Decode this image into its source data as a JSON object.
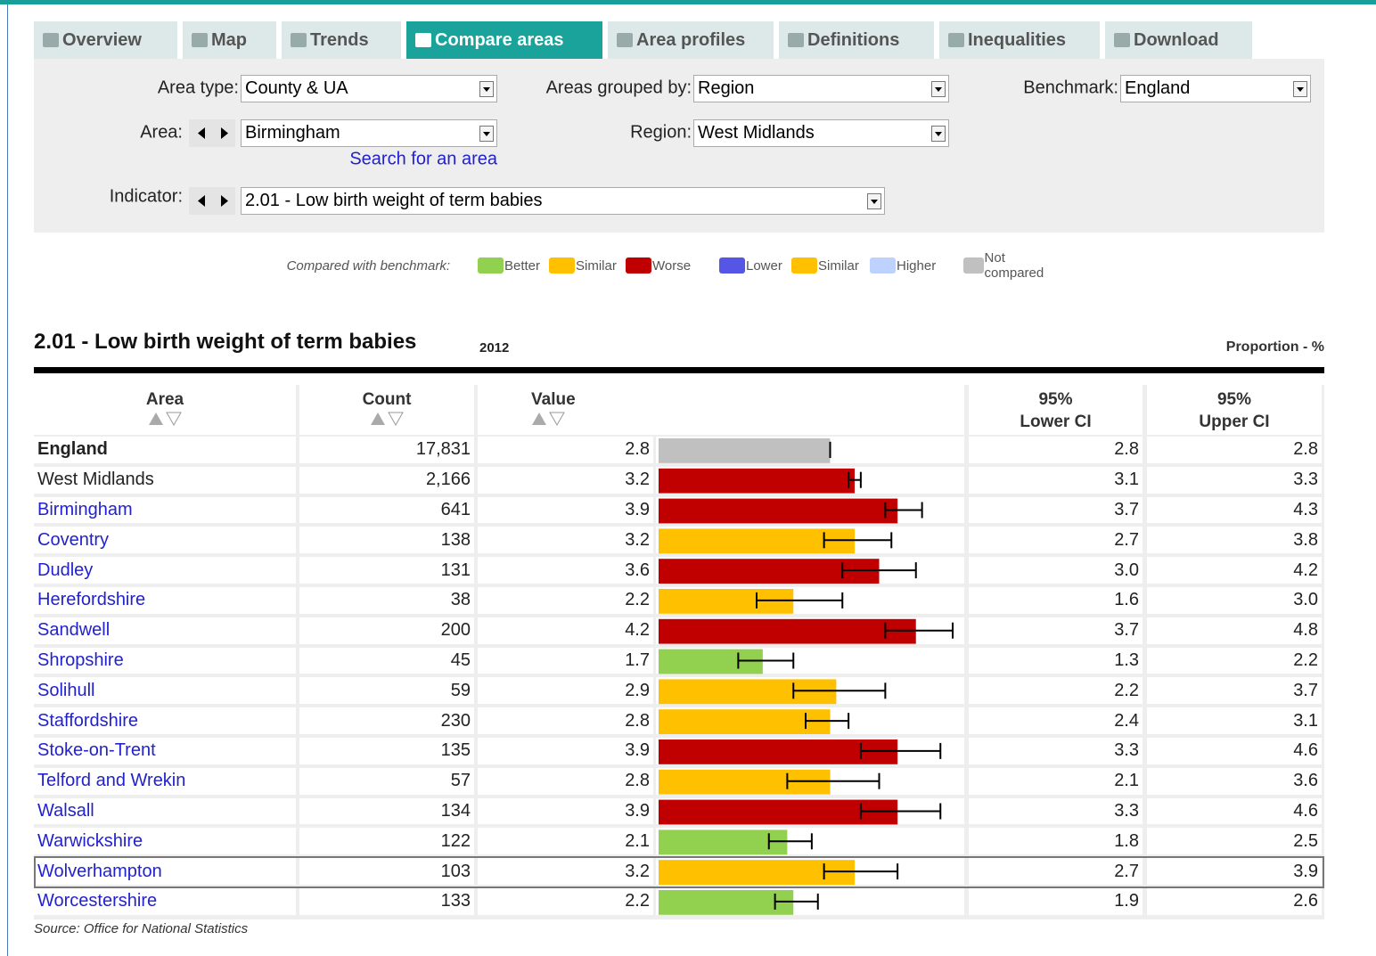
{
  "tabs": [
    "Overview",
    "Map",
    "Trends",
    "Compare areas",
    "Area profiles",
    "Definitions",
    "Inequalities",
    "Download"
  ],
  "filters": {
    "area_type_label": "Area type:",
    "area_type": "County & UA",
    "grouped_by_label": "Areas grouped by:",
    "grouped_by": "Region",
    "benchmark_label": "Benchmark:",
    "benchmark": "England",
    "area_label": "Area:",
    "area": "Birmingham",
    "search_link": "Search for an area",
    "region_label": "Region:",
    "region": "West Midlands",
    "indicator_label": "Indicator:",
    "indicator": "2.01 - Low birth weight of term babies"
  },
  "legend": {
    "label": "Compared with benchmark:",
    "items": [
      {
        "name": "Better",
        "color": "#92d050"
      },
      {
        "name": "Similar",
        "color": "#ffc000"
      },
      {
        "name": "Worse",
        "color": "#c00000"
      },
      {
        "name": "Lower",
        "color": "#5555e6"
      },
      {
        "name": "Similar",
        "color": "#ffc000"
      },
      {
        "name": "Higher",
        "color": "#bed2ff"
      },
      {
        "name": "Not compared",
        "color": "#c0c0c0"
      }
    ]
  },
  "table": {
    "title": "2.01 - Low birth weight of term babies",
    "year": "2012",
    "unit": "Proportion - %",
    "columns": [
      "Area",
      "Count",
      "Value",
      "95% Lower CI",
      "95% Upper CI"
    ],
    "rows": [
      {
        "area": "England",
        "count": "17,831",
        "value": 2.8,
        "lower": 2.8,
        "upper": 2.8,
        "color": "#c0c0c0"
      },
      {
        "area": "West Midlands",
        "count": "2,166",
        "value": 3.2,
        "lower": 3.1,
        "upper": 3.3,
        "color": "#c00000"
      },
      {
        "area": "Birmingham",
        "count": "641",
        "value": 3.9,
        "lower": 3.7,
        "upper": 4.3,
        "color": "#c00000"
      },
      {
        "area": "Coventry",
        "count": "138",
        "value": 3.2,
        "lower": 2.7,
        "upper": 3.8,
        "color": "#ffc000"
      },
      {
        "area": "Dudley",
        "count": "131",
        "value": 3.6,
        "lower": 3,
        "lower_label": "3.0",
        "upper": 4.2,
        "color": "#c00000"
      },
      {
        "area": "Herefordshire",
        "count": "38",
        "value": 2.2,
        "lower": 1.6,
        "upper": 3,
        "upper_label": "3.0",
        "color": "#ffc000"
      },
      {
        "area": "Sandwell",
        "count": "200",
        "value": 4.2,
        "lower": 3.7,
        "upper": 4.8,
        "color": "#c00000"
      },
      {
        "area": "Shropshire",
        "count": "45",
        "value": 1.7,
        "lower": 1.3,
        "upper": 2.2,
        "color": "#92d050"
      },
      {
        "area": "Solihull",
        "count": "59",
        "value": 2.9,
        "lower": 2.2,
        "upper": 3.7,
        "color": "#ffc000"
      },
      {
        "area": "Staffordshire",
        "count": "230",
        "value": 2.8,
        "lower": 2.4,
        "upper": 3.1,
        "color": "#ffc000"
      },
      {
        "area": "Stoke-on-Trent",
        "count": "135",
        "value": 3.9,
        "lower": 3.3,
        "upper": 4.6,
        "color": "#c00000"
      },
      {
        "area": "Telford and Wrekin",
        "count": "57",
        "value": 2.8,
        "lower": 2.1,
        "upper": 3.6,
        "color": "#ffc000"
      },
      {
        "area": "Walsall",
        "count": "134",
        "value": 3.9,
        "lower": 3.3,
        "upper": 4.6,
        "color": "#c00000"
      },
      {
        "area": "Warwickshire",
        "count": "122",
        "value": 2.1,
        "lower": 1.8,
        "upper": 2.5,
        "color": "#92d050"
      },
      {
        "area": "Wolverhampton",
        "count": "103",
        "value": 3.2,
        "lower": 2.7,
        "upper": 3.9,
        "color": "#ffc000"
      },
      {
        "area": "Worcestershire",
        "count": "133",
        "value": 2.2,
        "lower": 1.9,
        "upper": 2.6,
        "color": "#92d050"
      }
    ]
  },
  "source": "Source: Office for National Statistics"
}
